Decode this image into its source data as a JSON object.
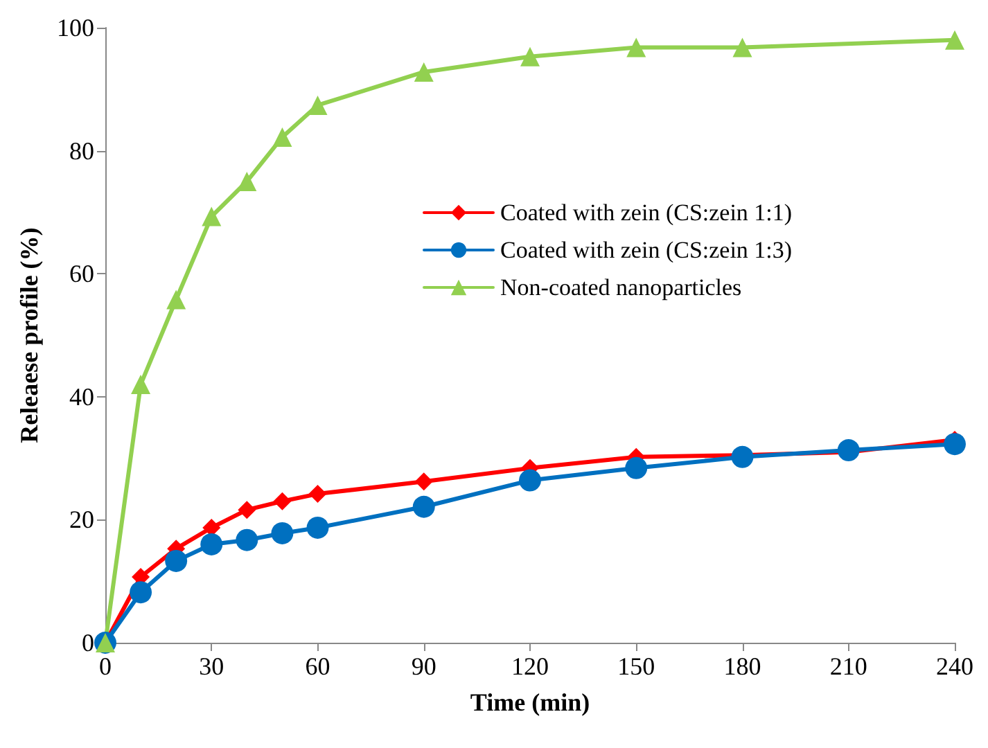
{
  "chart_data": {
    "type": "line",
    "xlabel": "Time (min)",
    "ylabel": "Releaese profile (%)",
    "x": [
      0,
      10,
      20,
      30,
      40,
      50,
      60,
      90,
      120,
      150,
      180,
      210,
      240
    ],
    "series": [
      {
        "name": "Coated with zein (CS:zein 1:1)",
        "color": "#ff0000",
        "marker": "diamond",
        "values": [
          0,
          10.7,
          15.3,
          18.7,
          21.6,
          23,
          24.2,
          26.2,
          28.4,
          30.2,
          30.5,
          31,
          33
        ]
      },
      {
        "name": "Coated with zein (CS:zein 1:3)",
        "color": "#0070c0",
        "marker": "circle",
        "values": [
          0,
          8.2,
          13.3,
          16,
          16.7,
          17.8,
          18.7,
          22.1,
          26.4,
          28.4,
          30.2,
          31.3,
          32.3
        ]
      },
      {
        "name": "Non-coated nanoparticles",
        "color": "#92d050",
        "marker": "triangle",
        "x": [
          0,
          10,
          20,
          30,
          40,
          50,
          60,
          90,
          120,
          150,
          180,
          240
        ],
        "values": [
          0,
          42,
          55.8,
          69.3,
          75,
          82.2,
          87.4,
          92.8,
          95.3,
          96.8,
          96.8,
          98
        ]
      }
    ],
    "xlim": [
      0,
      240
    ],
    "xticks": [
      0,
      30,
      60,
      90,
      120,
      150,
      180,
      210,
      240
    ],
    "ylim": [
      0,
      100
    ],
    "yticks": [
      0,
      20,
      40,
      60,
      80,
      100
    ],
    "grid": false,
    "legend": "right",
    "line_style": "solid"
  }
}
